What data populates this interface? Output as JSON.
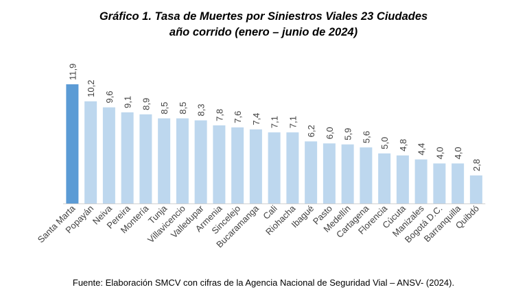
{
  "title_line1": "Gráfico 1. Tasa de Muertes por Siniestros Viales 23 Ciudades",
  "title_line2": "año corrido (enero – junio de 2024)",
  "source": "Fuente: Elaboración SMCV con cifras de la Agencia Nacional de Seguridad Vial – ANSV- (2024).",
  "chart_data": {
    "type": "bar",
    "title": "Gráfico 1. Tasa de Muertes por Siniestros Viales 23 Ciudades año corrido (enero – junio de 2024)",
    "categories": [
      "Santa Marta",
      "Popayán",
      "Neiva",
      "Pereira",
      "Montería",
      "Tunja",
      "Villavicencio",
      "Valledupar",
      "Armenia",
      "Sincelejo",
      "Bucaramanga",
      "Cali",
      "Riohacha",
      "Ibagué",
      "Pasto",
      "Medellín",
      "Cartagena",
      "Florencia",
      "Cúcuta",
      "Manizales",
      "Bogotá D.C.",
      "Barranquilla",
      "Quibdó"
    ],
    "values": [
      11.9,
      10.2,
      9.6,
      9.1,
      8.9,
      8.5,
      8.5,
      8.3,
      7.8,
      7.6,
      7.4,
      7.1,
      7.1,
      6.2,
      6.0,
      5.9,
      5.6,
      5.0,
      4.8,
      4.4,
      4.0,
      4.0,
      2.8
    ],
    "value_labels": [
      "11,9",
      "10,2",
      "9,6",
      "9,1",
      "8,9",
      "8,5",
      "8,5",
      "8,3",
      "7,8",
      "7,6",
      "7,4",
      "7,1",
      "7,1",
      "6,2",
      "6,0",
      "5,9",
      "5,6",
      "5,0",
      "4,8",
      "4,4",
      "4,0",
      "4,0",
      "2,8"
    ],
    "highlight_index": 0,
    "colors": {
      "highlight": "#5b9bd5",
      "bar": "#bdd7ee",
      "axis": "#d0d0d0",
      "text": "#404040"
    },
    "grid": false,
    "legend": "none",
    "ylim": [
      0,
      12
    ]
  }
}
